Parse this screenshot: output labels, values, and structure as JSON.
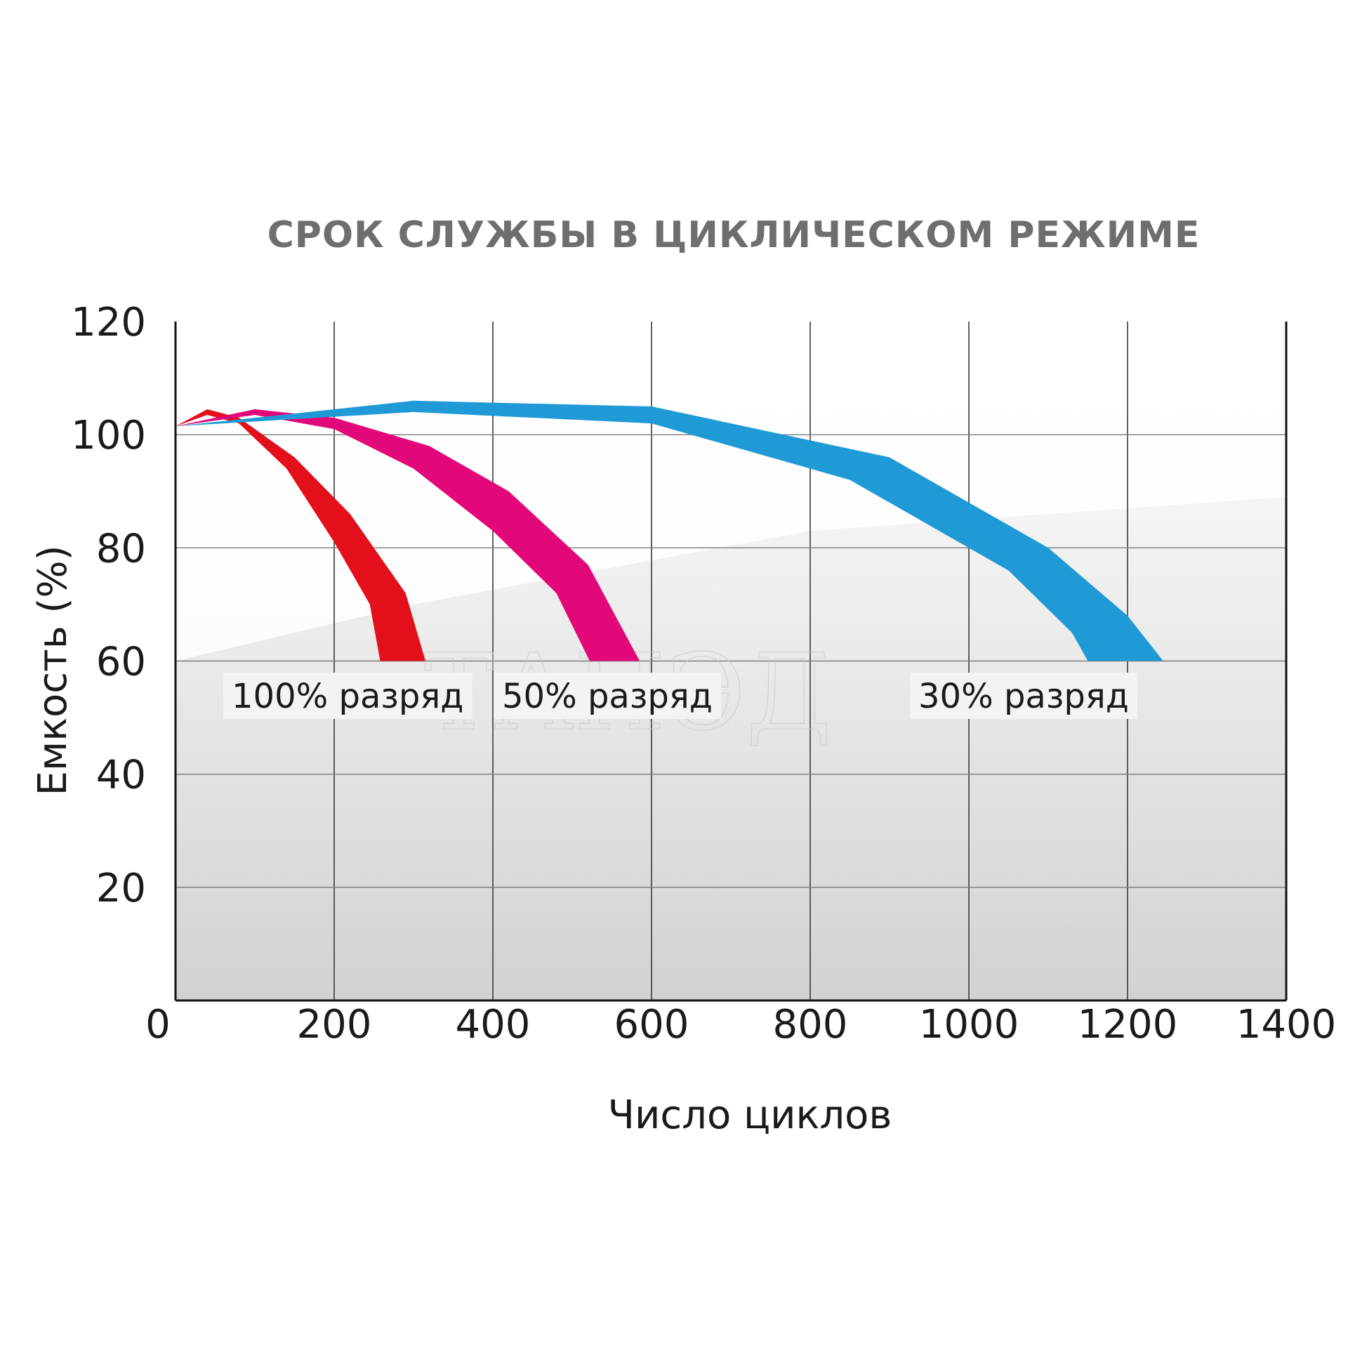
{
  "chart_data": {
    "type": "area",
    "title": "СРОК СЛУЖБЫ В ЦИКЛИЧЕСКОМ РЕЖИМЕ",
    "xlabel": "Число циклов",
    "ylabel": "Емкость (%)",
    "xlim": [
      0,
      1400
    ],
    "ylim": [
      0,
      120
    ],
    "x_ticks": [
      "200",
      "400",
      "600",
      "800",
      "1000",
      "1200",
      "1400"
    ],
    "y_ticks": [
      "120",
      "100",
      "80",
      "60",
      "40",
      "20"
    ],
    "origin_label": "0",
    "grid": true,
    "watermark": "ТАНЭД",
    "series": [
      {
        "name": "100% разряд",
        "color": "#e30f1b",
        "upper": [
          [
            0,
            101.5
          ],
          [
            40,
            104.5
          ],
          [
            80,
            103
          ],
          [
            150,
            96
          ],
          [
            220,
            86
          ],
          [
            290,
            72
          ],
          [
            315,
            60
          ]
        ],
        "lower": [
          [
            0,
            101.5
          ],
          [
            40,
            103.5
          ],
          [
            80,
            102
          ],
          [
            140,
            94
          ],
          [
            200,
            81
          ],
          [
            245,
            70
          ],
          [
            258,
            60
          ]
        ]
      },
      {
        "name": "50% разряд",
        "color": "#e2087a",
        "upper": [
          [
            0,
            101.5
          ],
          [
            100,
            104.5
          ],
          [
            200,
            103
          ],
          [
            320,
            98
          ],
          [
            420,
            90
          ],
          [
            520,
            77
          ],
          [
            585,
            60
          ]
        ],
        "lower": [
          [
            0,
            101.5
          ],
          [
            100,
            103.5
          ],
          [
            200,
            101
          ],
          [
            300,
            94
          ],
          [
            400,
            83
          ],
          [
            480,
            72
          ],
          [
            522,
            60
          ]
        ]
      },
      {
        "name": "30% разряд",
        "color": "#1f9ad6",
        "upper": [
          [
            0,
            101.5
          ],
          [
            300,
            106
          ],
          [
            600,
            105
          ],
          [
            900,
            96
          ],
          [
            1100,
            80
          ],
          [
            1200,
            68
          ],
          [
            1245,
            60
          ]
        ],
        "lower": [
          [
            0,
            101.5
          ],
          [
            300,
            104
          ],
          [
            600,
            102
          ],
          [
            850,
            92
          ],
          [
            1050,
            76
          ],
          [
            1130,
            65
          ],
          [
            1150,
            60
          ]
        ]
      }
    ]
  }
}
